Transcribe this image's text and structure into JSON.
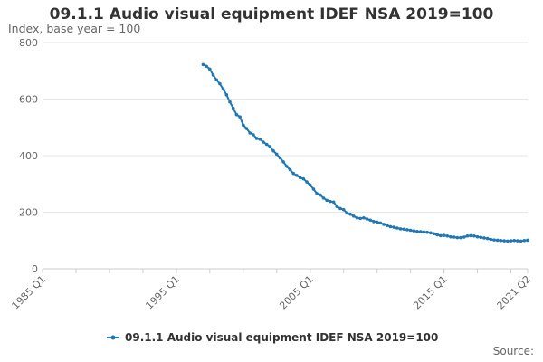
{
  "chart_data": {
    "type": "line",
    "title": "09.1.1 Audio visual equipment IDEF NSA 2019=100",
    "ylabel": "Index, base year = 100",
    "xlabel": "",
    "ylim": [
      0,
      800
    ],
    "yticks": [
      0,
      200,
      400,
      600,
      800
    ],
    "xlim": [
      "1985 Q1",
      "2021 Q2"
    ],
    "xticks": [
      "1985 Q1",
      "1995 Q1",
      "2005 Q1",
      "2015 Q1",
      "2021 Q2"
    ],
    "grid": "horizontal",
    "legend": "bottom",
    "color": "#1f77b4",
    "series": [
      {
        "name": "09.1.1 Audio visual equipment IDEF NSA 2019=100",
        "points": [
          [
            "1997 Q1",
            722
          ],
          [
            "1997 Q2",
            716
          ],
          [
            "1997 Q3",
            706
          ],
          [
            "1997 Q4",
            685
          ],
          [
            "1998 Q1",
            668
          ],
          [
            "1998 Q2",
            654
          ],
          [
            "1998 Q3",
            635
          ],
          [
            "1998 Q4",
            615
          ],
          [
            "1999 Q1",
            590
          ],
          [
            "1999 Q2",
            568
          ],
          [
            "1999 Q3",
            545
          ],
          [
            "1999 Q4",
            537
          ],
          [
            "2000 Q1",
            508
          ],
          [
            "2000 Q2",
            496
          ],
          [
            "2000 Q3",
            480
          ],
          [
            "2000 Q4",
            474
          ],
          [
            "2001 Q1",
            461
          ],
          [
            "2001 Q2",
            458
          ],
          [
            "2001 Q3",
            448
          ],
          [
            "2001 Q4",
            440
          ],
          [
            "2002 Q1",
            432
          ],
          [
            "2002 Q2",
            417
          ],
          [
            "2002 Q3",
            405
          ],
          [
            "2002 Q4",
            392
          ],
          [
            "2003 Q1",
            378
          ],
          [
            "2003 Q2",
            362
          ],
          [
            "2003 Q3",
            350
          ],
          [
            "2003 Q4",
            337
          ],
          [
            "2004 Q1",
            330
          ],
          [
            "2004 Q2",
            322
          ],
          [
            "2004 Q3",
            318
          ],
          [
            "2004 Q4",
            307
          ],
          [
            "2005 Q1",
            296
          ],
          [
            "2005 Q2",
            282
          ],
          [
            "2005 Q3",
            266
          ],
          [
            "2005 Q4",
            261
          ],
          [
            "2006 Q1",
            250
          ],
          [
            "2006 Q2",
            242
          ],
          [
            "2006 Q3",
            238
          ],
          [
            "2006 Q4",
            236
          ],
          [
            "2007 Q1",
            220
          ],
          [
            "2007 Q2",
            213
          ],
          [
            "2007 Q3",
            209
          ],
          [
            "2007 Q4",
            197
          ],
          [
            "2008 Q1",
            193
          ],
          [
            "2008 Q2",
            186
          ],
          [
            "2008 Q3",
            180
          ],
          [
            "2008 Q4",
            178
          ],
          [
            "2009 Q1",
            180
          ],
          [
            "2009 Q2",
            176
          ],
          [
            "2009 Q3",
            172
          ],
          [
            "2009 Q4",
            167
          ],
          [
            "2010 Q1",
            165
          ],
          [
            "2010 Q2",
            162
          ],
          [
            "2010 Q3",
            157
          ],
          [
            "2010 Q4",
            153
          ],
          [
            "2011 Q1",
            149
          ],
          [
            "2011 Q2",
            147
          ],
          [
            "2011 Q3",
            144
          ],
          [
            "2011 Q4",
            141
          ],
          [
            "2012 Q1",
            140
          ],
          [
            "2012 Q2",
            138
          ],
          [
            "2012 Q3",
            136
          ],
          [
            "2012 Q4",
            134
          ],
          [
            "2013 Q1",
            132
          ],
          [
            "2013 Q2",
            131
          ],
          [
            "2013 Q3",
            130
          ],
          [
            "2013 Q4",
            129
          ],
          [
            "2014 Q1",
            127
          ],
          [
            "2014 Q2",
            124
          ],
          [
            "2014 Q3",
            120
          ],
          [
            "2014 Q4",
            117
          ],
          [
            "2015 Q1",
            118
          ],
          [
            "2015 Q2",
            116
          ],
          [
            "2015 Q3",
            113
          ],
          [
            "2015 Q4",
            112
          ],
          [
            "2016 Q1",
            110
          ],
          [
            "2016 Q2",
            110
          ],
          [
            "2016 Q3",
            112
          ],
          [
            "2016 Q4",
            116
          ],
          [
            "2017 Q1",
            117
          ],
          [
            "2017 Q2",
            116
          ],
          [
            "2017 Q3",
            113
          ],
          [
            "2017 Q4",
            111
          ],
          [
            "2018 Q1",
            109
          ],
          [
            "2018 Q2",
            107
          ],
          [
            "2018 Q3",
            104
          ],
          [
            "2018 Q4",
            102
          ],
          [
            "2019 Q1",
            101
          ],
          [
            "2019 Q2",
            100
          ],
          [
            "2019 Q3",
            99
          ],
          [
            "2019 Q4",
            98
          ],
          [
            "2020 Q1",
            99
          ],
          [
            "2020 Q2",
            100
          ],
          [
            "2020 Q3",
            99
          ],
          [
            "2020 Q4",
            98
          ],
          [
            "2021 Q1",
            100
          ],
          [
            "2021 Q2",
            101
          ]
        ]
      }
    ]
  },
  "footer": {
    "source_label": "Source:"
  }
}
